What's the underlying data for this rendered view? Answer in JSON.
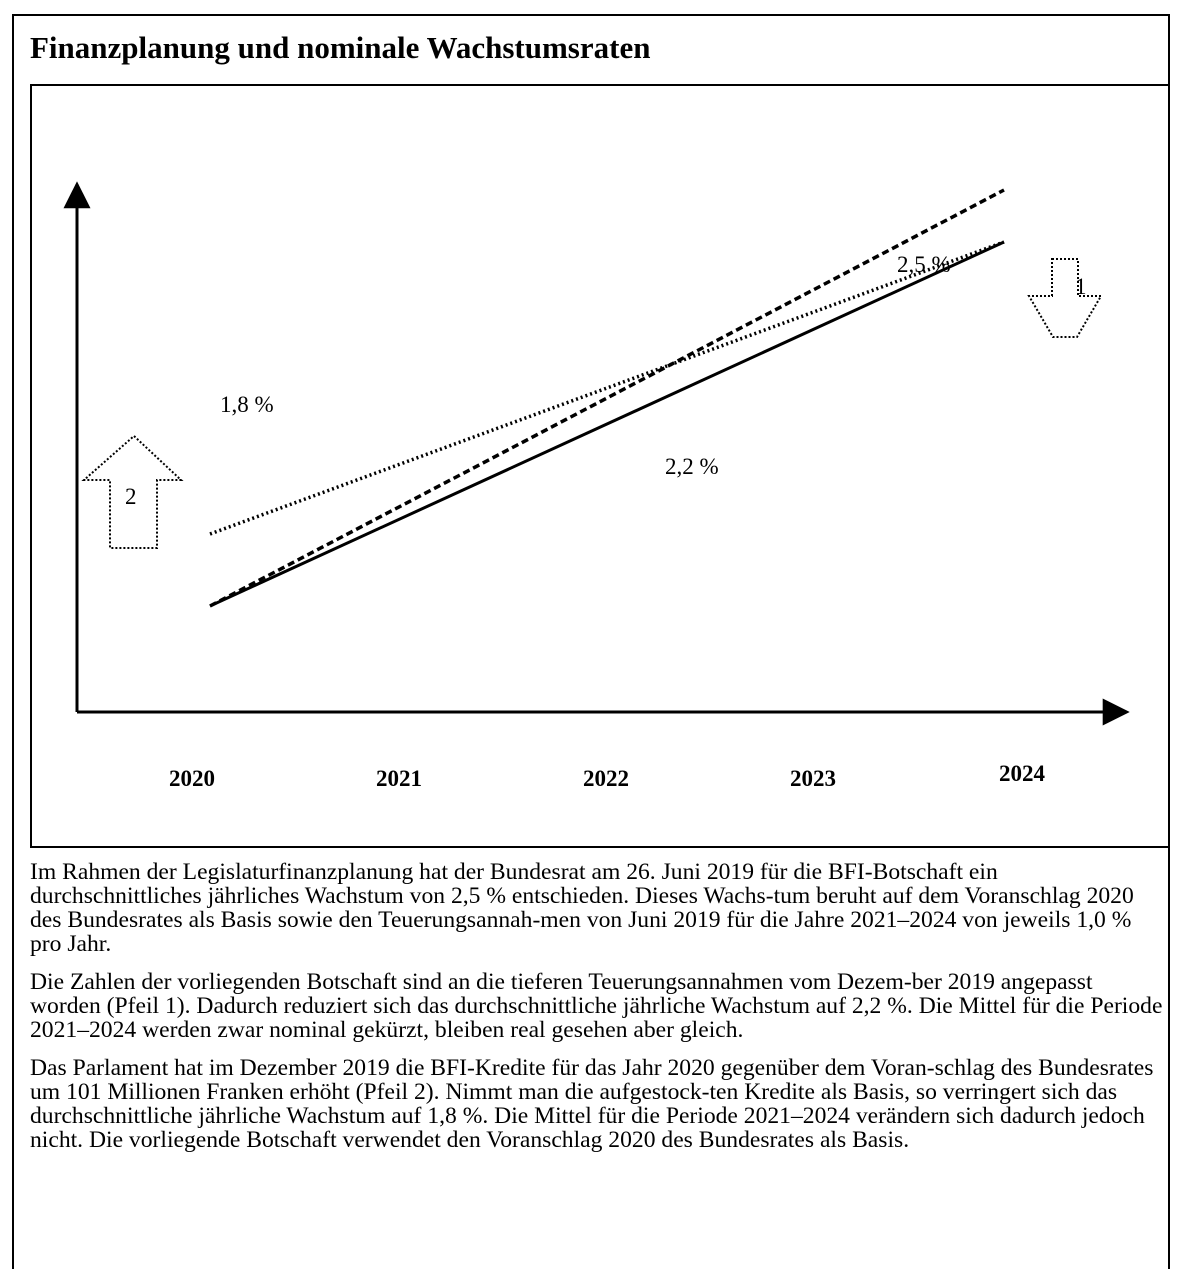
{
  "title": "Finanzplanung und nominale Wachstumsraten",
  "chart_data": {
    "type": "line",
    "categories": [
      "2020",
      "2021",
      "2022",
      "2023",
      "2024"
    ],
    "series": [
      {
        "name": "2,5 %",
        "style": "dashed",
        "x": [
          "2020",
          "2024"
        ],
        "y": [
          0,
          10.4
        ]
      },
      {
        "name": "2,2 %",
        "style": "solid",
        "x": [
          "2020",
          "2024"
        ],
        "y": [
          0,
          9.1
        ]
      },
      {
        "name": "1,8 %",
        "style": "dotted",
        "x": [
          "2020",
          "2024"
        ],
        "y": [
          1.8,
          9.1
        ]
      }
    ],
    "labels": {
      "rate_25": "2,5 %",
      "rate_22": "2,2 %",
      "rate_18": "1,8 %"
    },
    "arrows": [
      {
        "label": "1",
        "direction": "down",
        "at": "2024"
      },
      {
        "label": "2",
        "direction": "up",
        "at": "2020"
      }
    ],
    "xlabel": "",
    "ylabel": "",
    "ylim": [
      -6,
      13
    ],
    "grid": false,
    "legend": "none",
    "colors": {
      "line": "#000000",
      "background": "#ffffff"
    }
  },
  "paragraphs": [
    "Im Rahmen der Legislaturfinanzplanung hat der Bundesrat am 26. Juni 2019 für die BFI-Botschaft ein durchschnittliches jährliches Wachstum von 2,5 % entschieden. Dieses Wachs-tum beruht auf dem Voranschlag 2020 des Bundesrates als Basis sowie den Teuerungsannah-men von Juni 2019 für die Jahre 2021–2024 von jeweils 1,0 % pro Jahr.",
    "Die Zahlen der vorliegenden Botschaft sind an die tieferen Teuerungsannahmen vom Dezem-ber 2019 angepasst worden (Pfeil 1). Dadurch reduziert sich das durchschnittliche jährliche Wachstum auf 2,2 %. Die Mittel für die Periode 2021–2024 werden zwar nominal gekürzt, bleiben real gesehen aber gleich.",
    "Das Parlament hat im Dezember 2019 die BFI-Kredite für das Jahr 2020 gegenüber dem Voran-schlag des Bundesrates um 101 Millionen Franken erhöht (Pfeil 2). Nimmt man die aufgestock-ten Kredite als Basis, so verringert sich das durchschnittliche jährliche Wachstum auf 1,8 %. Die Mittel für die Periode 2021–2024 verändern sich dadurch jedoch nicht. Die vorliegende Botschaft verwendet den Voranschlag 2020 des Bundesrates als Basis."
  ]
}
